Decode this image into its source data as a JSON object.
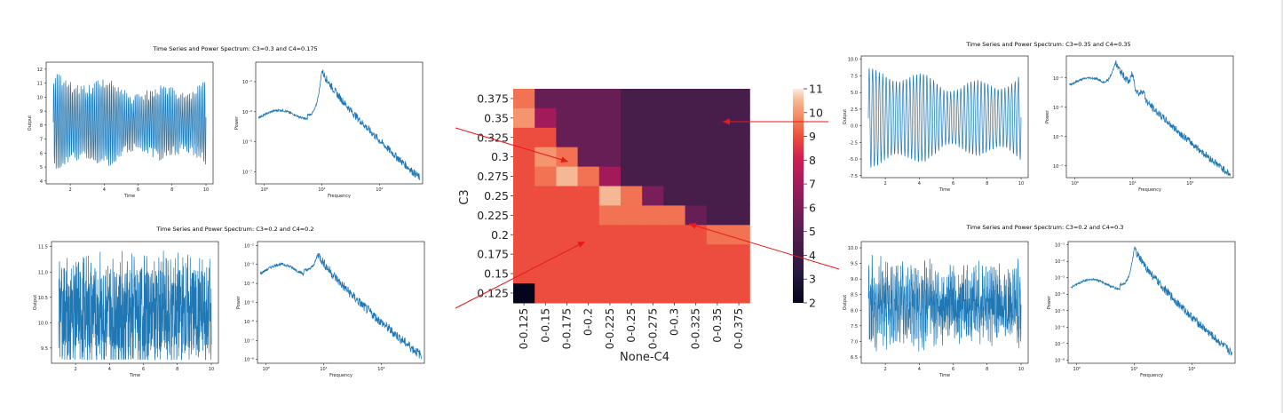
{
  "panels": [
    {
      "title": "Time Series and Power Spectrum: C3=0.3 and C4=0.175",
      "ts": {
        "xlabel": "Time",
        "ylabel": "Output",
        "xticks": [
          "2",
          "4",
          "6",
          "8",
          "10"
        ],
        "yticks": [
          "4",
          "5",
          "6",
          "7",
          "8",
          "9",
          "10",
          "11",
          "12"
        ],
        "ylim": [
          3.8,
          12.5
        ],
        "center": 8.2,
        "amp": 3.2,
        "freq": 10,
        "noise": 0.9
      },
      "ps": {
        "xlabel": "Frequency",
        "ylabel": "Power",
        "yticks": [
          "10⁻⁷",
          "10⁻⁵",
          "10⁻³",
          "10⁻¹"
        ],
        "ylim": [
          -7.8,
          0.3
        ],
        "xticks": [
          "10⁰",
          "10¹",
          "10²"
        ],
        "peak_freq": 10,
        "base": -3.2,
        "peak": -0.2,
        "end": -7.4,
        "harm": false
      }
    },
    {
      "title": "Time Series and Power Spectrum: C3=0.2 and C4=0.2",
      "ts": {
        "xlabel": "Time",
        "ylabel": "Output",
        "xticks": [
          "2",
          "4",
          "6",
          "8",
          "10"
        ],
        "yticks": [
          "9.5",
          "10.0",
          "10.5",
          "11.0",
          "11.5"
        ],
        "ylim": [
          9.2,
          11.6
        ],
        "center": 10.2,
        "amp": 0.35,
        "freq": 7,
        "noise": 0.9
      },
      "ps": {
        "xlabel": "Frequency",
        "ylabel": "Power",
        "yticks": [
          "10⁻⁸",
          "10⁻⁷",
          "10⁻⁶",
          "10⁻⁵",
          "10⁻⁴",
          "10⁻³",
          "10⁻²"
        ],
        "ylim": [
          -8.2,
          -1.8
        ],
        "xticks": [
          "10⁰",
          "10¹",
          "10²"
        ],
        "peak_freq": 8,
        "base": -3.3,
        "peak": -2.4,
        "end": -7.8,
        "harm": false
      }
    },
    {
      "title": "Time Series and Power Spectrum: C3=0.35 and C4=0.35",
      "ts": {
        "xlabel": "Time",
        "ylabel": "Output",
        "xticks": [
          "2",
          "4",
          "6",
          "8",
          "10"
        ],
        "yticks": [
          "-7.5",
          "-5.0",
          "-2.5",
          "0.0",
          "2.5",
          "5.0",
          "7.5",
          "10.0"
        ],
        "ylim": [
          -7.8,
          10.5
        ],
        "center": 1.2,
        "amp": 7.5,
        "freq": 5,
        "noise": 0.2
      },
      "ps": {
        "xlabel": "Frequency",
        "ylabel": "Power",
        "yticks": [
          "10⁻⁷",
          "10⁻⁵",
          "10⁻³",
          "10⁻¹"
        ],
        "ylim": [
          -7.8,
          0.5
        ],
        "xticks": [
          "10⁰",
          "10¹",
          "10²"
        ],
        "peak_freq": 5,
        "base": -1.3,
        "peak": 0.1,
        "end": -7.6,
        "harm": true
      }
    },
    {
      "title": "Time Series and Power Spectrum: C3=0.2 and C4=0.3",
      "ts": {
        "xlabel": "Time",
        "ylabel": "Output",
        "xticks": [
          "2",
          "4",
          "6",
          "8",
          "10"
        ],
        "yticks": [
          "6.5",
          "7.0",
          "7.5",
          "8.0",
          "8.5",
          "9.0",
          "9.5",
          "10.0"
        ],
        "ylim": [
          6.3,
          10.2
        ],
        "center": 8.2,
        "amp": 0.8,
        "freq": 10,
        "noise": 0.8
      },
      "ps": {
        "xlabel": "Frequency",
        "ylabel": "Power",
        "yticks": [
          "10⁻⁸",
          "10⁻⁷",
          "10⁻⁶",
          "10⁻⁵",
          "10⁻⁴",
          "10⁻³",
          "10⁻²",
          "10⁻¹"
        ],
        "ylim": [
          -8.2,
          -0.8
        ],
        "xticks": [
          "10⁰",
          "10¹",
          "10²"
        ],
        "peak_freq": 10,
        "base": -3.4,
        "peak": -1.2,
        "end": -7.6,
        "harm": false
      }
    }
  ],
  "chart_data": {
    "type": "heatmap",
    "xlabel": "None-C4",
    "ylabel": "C3",
    "x_categories": [
      "0-0.125",
      "0-0.15",
      "0-0.175",
      "0-0.2",
      "0-0.225",
      "0-0.25",
      "0-0.275",
      "0-0.3",
      "0-0.325",
      "0-0.35",
      "0-0.375"
    ],
    "y_categories": [
      "0.375",
      "0.35",
      "0.325",
      "0.3",
      "0.275",
      "0.25",
      "0.225",
      "0.2",
      "0.175",
      "0.15",
      "0.125"
    ],
    "values": [
      [
        9.5,
        5.5,
        5.5,
        5.5,
        5.5,
        4.5,
        4.5,
        4.5,
        4.5,
        4.5,
        4.5
      ],
      [
        10,
        7,
        5.5,
        5.5,
        5.5,
        4.5,
        4.5,
        4.5,
        4.5,
        4.5,
        4.5
      ],
      [
        9,
        9,
        5.5,
        5.5,
        5.5,
        4.5,
        4.5,
        4.5,
        4.5,
        4.5,
        4.5
      ],
      [
        9,
        10,
        9.5,
        5.5,
        5.5,
        4.5,
        4.5,
        4.5,
        4.5,
        4.5,
        4.5
      ],
      [
        9,
        9.5,
        10.5,
        9.5,
        7,
        4.5,
        4.5,
        4.5,
        4.5,
        4.5,
        4.5
      ],
      [
        9,
        9,
        9,
        9,
        10.5,
        9.5,
        6,
        4.5,
        4.5,
        4.5,
        4.5
      ],
      [
        9,
        9,
        9,
        9,
        9.5,
        9.5,
        9.5,
        9.5,
        5.5,
        4.5,
        4.5
      ],
      [
        9,
        9,
        9,
        9,
        9,
        9,
        9,
        9,
        9,
        9.5,
        9.5
      ],
      [
        9,
        9,
        9,
        9,
        9,
        9,
        9,
        9,
        9,
        9,
        9
      ],
      [
        9,
        9,
        9,
        9,
        9,
        9,
        9,
        9,
        9,
        9,
        9
      ],
      [
        2,
        9,
        9,
        9,
        9,
        9,
        9,
        9,
        9,
        9,
        9
      ]
    ],
    "colorbar": {
      "min": 2,
      "max": 11,
      "ticks": [
        "2",
        "3",
        "4",
        "5",
        "6",
        "7",
        "8",
        "9",
        "10",
        "11"
      ]
    },
    "colors": {
      "arrow": "#e8191a",
      "line": "#1f77b4"
    }
  }
}
